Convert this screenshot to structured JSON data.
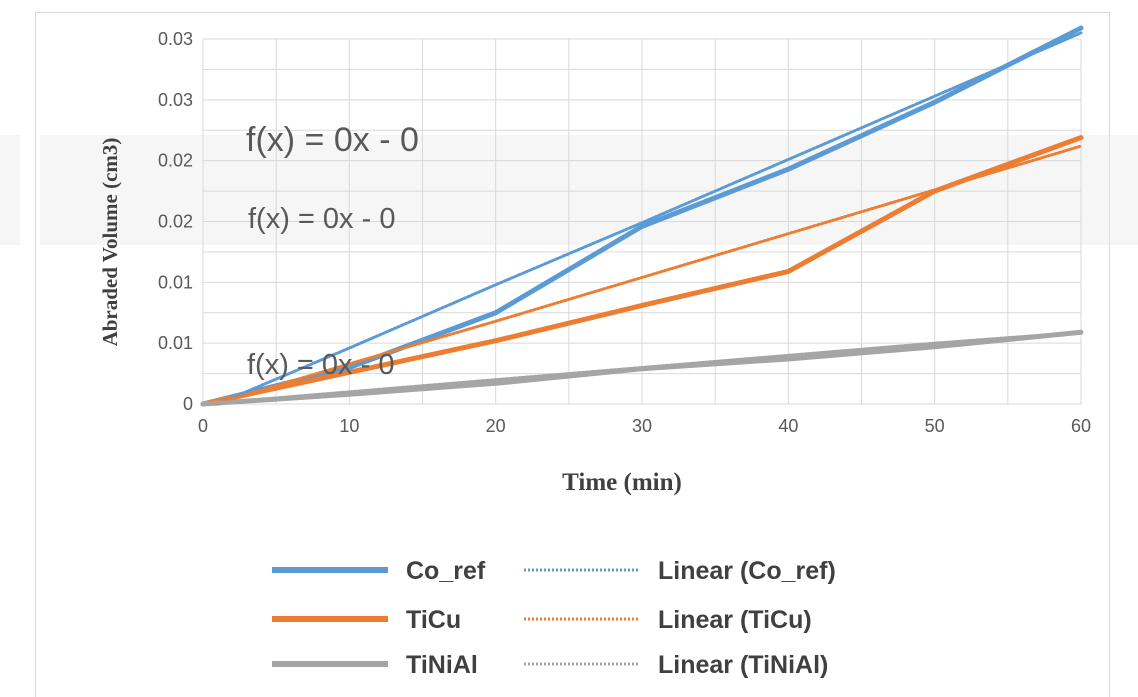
{
  "chart_data": {
    "type": "line",
    "xlabel": "Time (min)",
    "ylabel": "Abraded Volume (cm3)",
    "x_ticks": [
      "0",
      "10",
      "20",
      "30",
      "40",
      "50",
      "60"
    ],
    "y_ticks": [
      "0",
      "0.01",
      "0.01",
      "0.02",
      "0.02",
      "0.03",
      "0.03"
    ],
    "xlim": [
      0,
      60
    ],
    "ylim": [
      0,
      0.03
    ],
    "grid": true,
    "legend_position": "bottom",
    "x": [
      0,
      10,
      20,
      30,
      40,
      50,
      60
    ],
    "series": [
      {
        "name": "Co_ref",
        "values": [
          0,
          0.003,
          0.0075,
          0.0146,
          0.0193,
          0.0248,
          0.0309
        ],
        "color": "#5b9bd5",
        "style": "solid"
      },
      {
        "name": "TiCu",
        "values": [
          0,
          0.0026,
          0.0052,
          0.0081,
          0.0109,
          0.0175,
          0.0219
        ],
        "color": "#ed7d31",
        "style": "solid"
      },
      {
        "name": "TiNiAl",
        "values": [
          0,
          0.0008,
          0.0017,
          0.0029,
          0.0037,
          0.0047,
          0.0059
        ],
        "color": "#a5a5a5",
        "style": "solid"
      },
      {
        "name": "Linear (Co_ref)",
        "values": [
          -0.0005,
          0.0046,
          0.0098,
          0.0149,
          0.0201,
          0.0253,
          0.0305
        ],
        "color": "#5b9bd5",
        "style": "dotted"
      },
      {
        "name": "Linear (TiCu)",
        "values": [
          -0.0003,
          0.0033,
          0.0068,
          0.0104,
          0.014,
          0.0176,
          0.0212
        ],
        "color": "#ed7d31",
        "style": "dotted"
      },
      {
        "name": "Linear (TiNiAl)",
        "values": [
          0,
          0.001,
          0.002,
          0.003,
          0.004,
          0.005,
          0.0059
        ],
        "color": "#a5a5a5",
        "style": "dotted"
      }
    ],
    "legend": [
      "Co_ref",
      "Linear (Co_ref)",
      "TiCu",
      "Linear (TiCu)",
      "TiNiAl",
      "Linear (TiNiAl)"
    ],
    "annotations": [
      "f(x) = 0x - 0",
      "f(x) = 0x - 0",
      "f(x) = 0x - 0"
    ]
  }
}
